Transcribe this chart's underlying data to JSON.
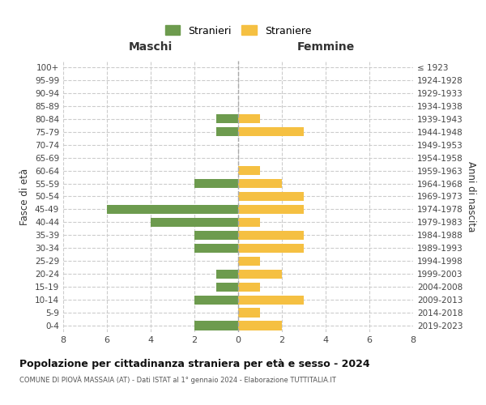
{
  "age_groups": [
    "0-4",
    "5-9",
    "10-14",
    "15-19",
    "20-24",
    "25-29",
    "30-34",
    "35-39",
    "40-44",
    "45-49",
    "50-54",
    "55-59",
    "60-64",
    "65-69",
    "70-74",
    "75-79",
    "80-84",
    "85-89",
    "90-94",
    "95-99",
    "100+"
  ],
  "birth_years": [
    "2019-2023",
    "2014-2018",
    "2009-2013",
    "2004-2008",
    "1999-2003",
    "1994-1998",
    "1989-1993",
    "1984-1988",
    "1979-1983",
    "1974-1978",
    "1969-1973",
    "1964-1968",
    "1959-1963",
    "1954-1958",
    "1949-1953",
    "1944-1948",
    "1939-1943",
    "1934-1938",
    "1929-1933",
    "1924-1928",
    "≤ 1923"
  ],
  "maschi": [
    2,
    0,
    2,
    1,
    1,
    0,
    2,
    2,
    4,
    6,
    0,
    2,
    0,
    0,
    0,
    1,
    1,
    0,
    0,
    0,
    0
  ],
  "femmine": [
    2,
    1,
    3,
    1,
    2,
    1,
    3,
    3,
    1,
    3,
    3,
    2,
    1,
    0,
    0,
    3,
    1,
    0,
    0,
    0,
    0
  ],
  "maschi_color": "#6d9b4e",
  "femmine_color": "#f5c042",
  "title": "Popolazione per cittadinanza straniera per età e sesso - 2024",
  "subtitle": "COMUNE DI PIOVÀ MASSAIA (AT) - Dati ISTAT al 1° gennaio 2024 - Elaborazione TUTTITALIA.IT",
  "ylabel_left": "Fasce di età",
  "ylabel_right": "Anni di nascita",
  "xlabel_maschi": "Maschi",
  "xlabel_femmine": "Femmine",
  "legend_maschi": "Stranieri",
  "legend_femmine": "Straniere",
  "xlim": 8,
  "background_color": "#ffffff",
  "grid_color": "#cccccc"
}
